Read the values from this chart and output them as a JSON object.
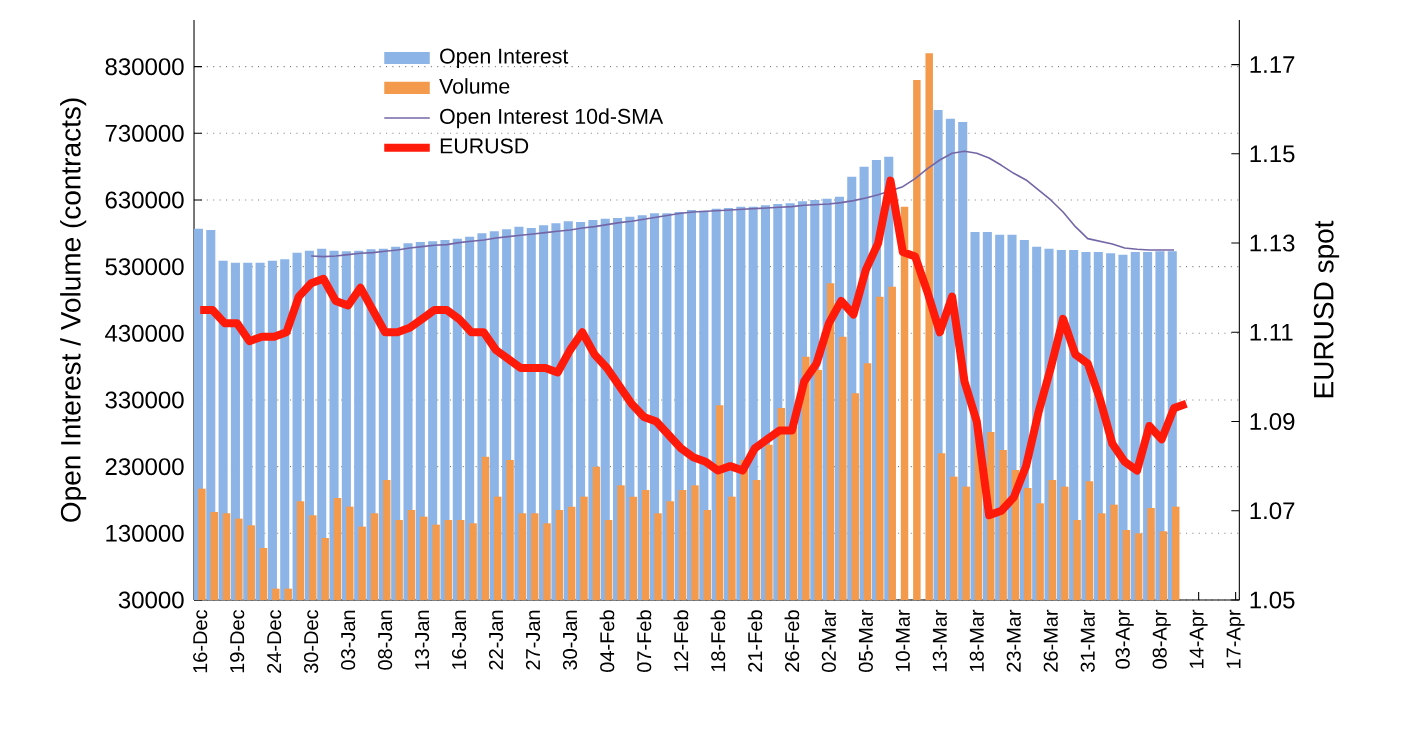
{
  "chart_data": {
    "type": "bar",
    "ylabel": "Open Interest / Volume (contracts)",
    "y2label": "EURUSD spot",
    "categories": [
      "16-Dec",
      null,
      null,
      "19-Dec",
      null,
      null,
      "24-Dec",
      null,
      null,
      "30-Dec",
      null,
      null,
      "03-Jan",
      null,
      null,
      "08-Jan",
      null,
      null,
      "13-Jan",
      null,
      null,
      "16-Jan",
      null,
      null,
      "22-Jan",
      null,
      null,
      "27-Jan",
      null,
      null,
      "30-Jan",
      null,
      null,
      "04-Feb",
      null,
      null,
      "07-Feb",
      null,
      null,
      "12-Feb",
      null,
      null,
      "18-Feb",
      null,
      null,
      "21-Feb",
      null,
      null,
      "26-Feb",
      null,
      null,
      "02-Mar",
      null,
      null,
      "05-Mar",
      null,
      null,
      "10-Mar",
      null,
      null,
      "13-Mar",
      null,
      null,
      "18-Mar",
      null,
      null,
      "23-Mar",
      null,
      null,
      "26-Mar",
      null,
      null,
      "31-Mar",
      null,
      null,
      "03-Apr",
      null,
      null,
      "08-Apr",
      null,
      null,
      "14-Apr",
      null,
      null,
      "17-Apr"
    ],
    "series": [
      {
        "name": "Open Interest",
        "color": "#8db4e6",
        "values": [
          587000,
          585000,
          539000,
          536000,
          536000,
          536000,
          539000,
          541000,
          551000,
          554000,
          557000,
          554000,
          553000,
          554000,
          556000,
          557000,
          560000,
          565000,
          567000,
          568000,
          570000,
          572000,
          575000,
          580000,
          583000,
          586000,
          590000,
          588000,
          592000,
          595000,
          598000,
          597000,
          600000,
          602000,
          603000,
          605000,
          607000,
          610000,
          610000,
          612000,
          615000,
          614000,
          617000,
          618000,
          620000,
          620000,
          622000,
          624000,
          625000,
          628000,
          630000,
          632000,
          635000,
          665000,
          680000,
          690000,
          695000,
          null,
          null,
          null,
          765000,
          752000,
          747000,
          582000,
          582000,
          578000,
          578000,
          570000,
          560000,
          557000,
          555000,
          555000,
          552000,
          552000,
          550000,
          548000,
          552000,
          552000,
          553000,
          553000,
          null,
          null,
          null,
          null,
          null
        ]
      },
      {
        "name": "Volume",
        "color": "#f39a4c",
        "values": [
          197000,
          162000,
          160000,
          152000,
          142000,
          108000,
          47000,
          47000,
          178000,
          157000,
          123000,
          183000,
          170000,
          140000,
          160000,
          210000,
          150000,
          165000,
          155000,
          143000,
          150000,
          150000,
          145000,
          245000,
          185000,
          240000,
          160000,
          160000,
          145000,
          165000,
          170000,
          185000,
          230000,
          150000,
          202000,
          185000,
          195000,
          160000,
          178000,
          195000,
          202000,
          165000,
          322000,
          185000,
          240000,
          210000,
          263000,
          318000,
          290000,
          395000,
          375000,
          505000,
          425000,
          340000,
          385000,
          485000,
          500000,
          620000,
          810000,
          850000,
          250000,
          215000,
          200000,
          282000,
          282000,
          255000,
          225000,
          198000,
          175000,
          210000,
          200000,
          150000,
          208000,
          160000,
          173000,
          135000,
          130000,
          168000,
          133000,
          170000,
          null,
          null,
          null,
          null,
          null
        ]
      },
      {
        "name": "Open Interest 10d-SMA",
        "type": "line",
        "color": "#7466a6",
        "values": [
          null,
          null,
          null,
          null,
          null,
          null,
          null,
          null,
          null,
          546000,
          545000,
          546000,
          548000,
          550000,
          551000,
          553000,
          555000,
          558000,
          560000,
          562000,
          563000,
          566000,
          568000,
          570000,
          573000,
          575000,
          577000,
          579000,
          581000,
          583000,
          585000,
          588000,
          590000,
          593000,
          596000,
          598000,
          601000,
          604000,
          607000,
          610000,
          612000,
          613000,
          614000,
          615000,
          616000,
          617000,
          618000,
          619000,
          620000,
          622000,
          623000,
          624000,
          626000,
          629000,
          633000,
          638000,
          644000,
          650000,
          662000,
          677000,
          690000,
          700000,
          703000,
          700000,
          693000,
          682000,
          670000,
          660000,
          645000,
          630000,
          612000,
          590000,
          572000,
          568000,
          564000,
          558000,
          556000,
          555000,
          555000,
          555000,
          null,
          null,
          null,
          null,
          null
        ]
      },
      {
        "name": "EURUSD",
        "type": "line",
        "axis": "y2",
        "color": "#ff1a0a",
        "values": [
          1.115,
          1.115,
          1.112,
          1.112,
          1.108,
          1.109,
          1.109,
          1.11,
          1.118,
          1.121,
          1.122,
          1.117,
          1.116,
          1.12,
          1.115,
          1.11,
          1.11,
          1.111,
          1.113,
          1.115,
          1.115,
          1.113,
          1.11,
          1.11,
          1.106,
          1.104,
          1.102,
          1.102,
          1.102,
          1.101,
          1.106,
          1.11,
          1.105,
          1.102,
          1.098,
          1.094,
          1.091,
          1.09,
          1.087,
          1.084,
          1.082,
          1.081,
          1.079,
          1.08,
          1.079,
          1.084,
          1.086,
          1.088,
          1.088,
          1.099,
          1.103,
          1.112,
          1.117,
          1.114,
          1.124,
          1.13,
          1.144,
          1.128,
          1.127,
          1.119,
          1.11,
          1.118,
          1.099,
          1.09,
          1.069,
          1.07,
          1.073,
          1.08,
          1.092,
          1.102,
          1.113,
          1.105,
          1.103,
          1.095,
          1.085,
          1.081,
          1.079,
          1.089,
          1.086,
          1.093,
          1.094,
          null,
          null,
          null,
          null
        ]
      }
    ],
    "ylim": [
      30000,
      900000
    ],
    "yticks": [
      30000,
      130000,
      230000,
      330000,
      430000,
      530000,
      630000,
      730000,
      830000
    ],
    "y2lim": [
      1.05,
      1.18
    ],
    "y2ticks": [
      1.05,
      1.07,
      1.09,
      1.11,
      1.13,
      1.15,
      1.17
    ],
    "grid": "y",
    "legend": "top left"
  }
}
